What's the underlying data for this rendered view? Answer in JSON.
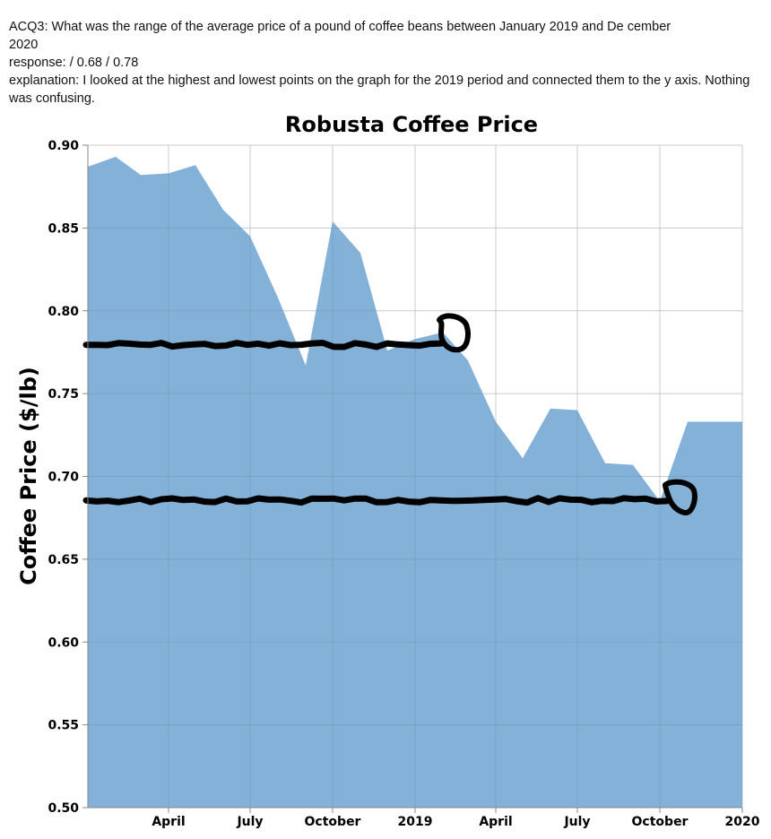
{
  "annotation": {
    "question": "ACQ3: What was the range of the average price of a pound of coffee beans between January 2019 and De cember 2020",
    "response_label": "response:",
    "response_value": " / 0.68 / 0.78",
    "explanation_label": "explanation:",
    "explanation_value": "I looked at the highest and lowest points on the graph for the 2019 period and connected them to the y axis. Nothing was confusing."
  },
  "colors": {
    "area_fill": "#84b1d7",
    "grid": "#dddddd",
    "axis": "#888888",
    "drawing": "#000000"
  },
  "chart_data": {
    "type": "area",
    "title": "Robusta Coffee Price",
    "xlabel": "",
    "ylabel": "Coffee Price ($/lb)",
    "ylim": [
      0.5,
      0.9
    ],
    "y_ticks": [
      "0.50",
      "0.55",
      "0.60",
      "0.65",
      "0.70",
      "0.75",
      "0.80",
      "0.85",
      "0.90"
    ],
    "xlim": [
      "2018-01-01",
      "2020-01-01"
    ],
    "x_ticks": [
      {
        "date": "2018-04-01",
        "label": "April"
      },
      {
        "date": "2018-07-01",
        "label": "July"
      },
      {
        "date": "2018-10-01",
        "label": "October"
      },
      {
        "date": "2019-01-01",
        "label": "2019"
      },
      {
        "date": "2019-04-01",
        "label": "April"
      },
      {
        "date": "2019-07-01",
        "label": "July"
      },
      {
        "date": "2019-10-01",
        "label": "October"
      },
      {
        "date": "2020-01-01",
        "label": "2020"
      }
    ],
    "grid": true,
    "x": [
      "2018-01-01",
      "2018-02-01",
      "2018-03-01",
      "2018-04-01",
      "2018-05-01",
      "2018-06-01",
      "2018-07-01",
      "2018-08-01",
      "2018-09-01",
      "2018-10-01",
      "2018-11-01",
      "2018-12-01",
      "2019-01-01",
      "2019-02-01",
      "2019-03-01",
      "2019-04-01",
      "2019-05-01",
      "2019-06-01",
      "2019-07-01",
      "2019-08-01",
      "2019-09-01",
      "2019-10-01",
      "2019-11-01",
      "2019-12-01",
      "2020-01-01"
    ],
    "values": [
      0.887,
      0.893,
      0.882,
      0.883,
      0.888,
      0.861,
      0.845,
      0.808,
      0.767,
      0.854,
      0.835,
      0.776,
      0.783,
      0.787,
      0.77,
      0.733,
      0.711,
      0.741,
      0.74,
      0.708,
      0.707,
      0.685,
      0.733,
      0.733,
      0.733
    ],
    "annotations": {
      "drawn_lines_at": [
        0.78,
        0.685
      ]
    }
  }
}
